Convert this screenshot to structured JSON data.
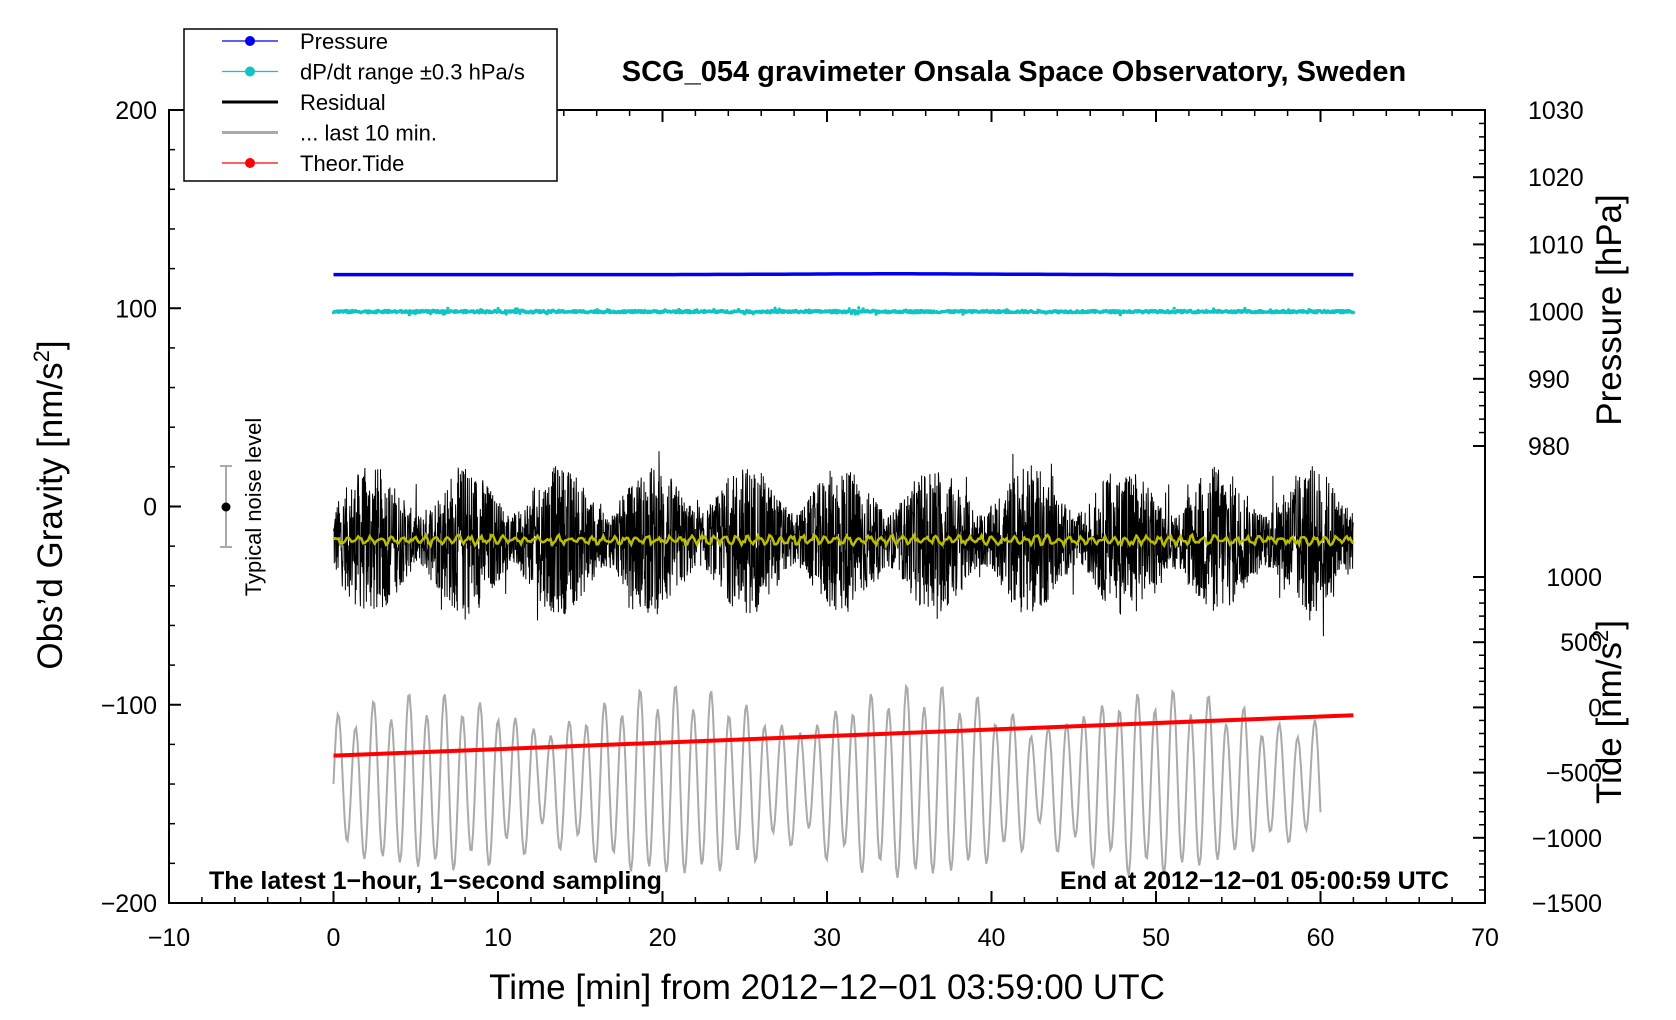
{
  "chart_data": {
    "type": "line",
    "title": "SCG_054 gravimeter Onsala Space Observatory, Sweden",
    "xlabel": "Time [min] from 2012−12−01 03:59:00 UTC",
    "ylabel_left": "Obs’d Gravity [nm/s²]",
    "ylabel_left_text": "Obs’d Gravity [nm/s",
    "ylabel_left_sup": "2",
    "ylabel_left_close": "]",
    "ylabel_right_top": "Pressure [hPa]",
    "ylabel_right_bottom": "Tide [nm/s²]",
    "ylabel_right_bottom_text": "Tide [nm/s",
    "ylabel_right_bottom_sup": "2",
    "ylabel_right_bottom_close": "]",
    "xlim": [
      -10,
      70
    ],
    "ylim_left": [
      -200,
      200
    ],
    "pressure_axis_range": [
      980,
      1030
    ],
    "tide_axis_range": [
      -1500,
      1000
    ],
    "xticks": [
      "−10",
      "0",
      "10",
      "20",
      "30",
      "40",
      "50",
      "60",
      "70"
    ],
    "yticks_left": [
      "−200",
      "−100",
      "0",
      "100",
      "200"
    ],
    "yticks_pressure": [
      "980",
      "990",
      "1000",
      "1010",
      "1020",
      "1030"
    ],
    "yticks_tide": [
      "−1500",
      "−1000",
      "−500",
      "0",
      "500",
      "1000"
    ],
    "legend": [
      {
        "label": "Pressure",
        "color": "#0000ee",
        "marker": "dot"
      },
      {
        "label": "dP/dt range ±0.3 hPa/s",
        "color": "#11c4c4",
        "marker": "dot"
      },
      {
        "label": "Residual",
        "color": "#000000",
        "marker": "line"
      },
      {
        "label": "... last 10 min.",
        "color": "#aaaaaa",
        "marker": "line"
      },
      {
        "label": "Theor.Tide",
        "color": "#ff0000",
        "marker": "dot"
      }
    ],
    "series": [
      {
        "name": "Pressure",
        "axis": "pressure",
        "x": [
          0,
          62
        ],
        "values": [
          1005.5,
          1005.5
        ],
        "color": "#0000ee"
      },
      {
        "name": "dP/dt range ±0.3 hPa/s",
        "axis": "pressure",
        "x": [
          0,
          62
        ],
        "values": [
          1000,
          1000
        ],
        "color": "#11c4c4"
      },
      {
        "name": "Residual",
        "axis": "gravity",
        "x": [
          0,
          62
        ],
        "center": -17,
        "amplitude_range": [
          -72,
          38
        ],
        "color": "#000000"
      },
      {
        "name": "Residual smoothed",
        "axis": "gravity",
        "x": [
          0,
          62
        ],
        "values": [
          -17,
          -17
        ],
        "color": "#bbbb00"
      },
      {
        "name": "... last 10 min.",
        "axis": "gravity",
        "x": [
          0,
          60
        ],
        "center": -140,
        "amplitude_range": [
          -185,
          -95
        ],
        "color": "#aaaaaa"
      },
      {
        "name": "Theor.Tide",
        "axis": "tide",
        "x": [
          0,
          62
        ],
        "values": [
          -370,
          -60
        ],
        "color": "#ff0000"
      }
    ],
    "noise_bar": {
      "x": -7,
      "center": 0,
      "low": -20,
      "high": 20,
      "label": "Typical noise level"
    },
    "annotations": {
      "bottom_left": "The latest 1−hour, 1−second sampling",
      "bottom_right": "End at 2012−12−01 05:00:59 UTC"
    }
  }
}
